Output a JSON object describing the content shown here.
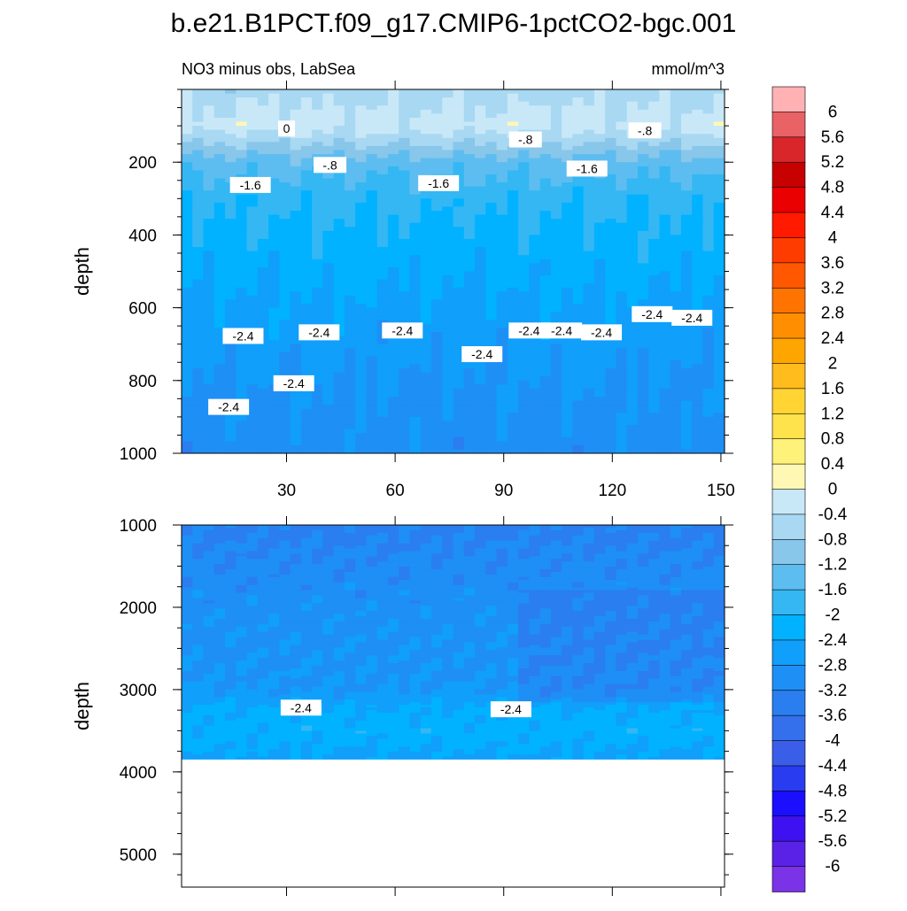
{
  "page": {
    "title": "b.e21.B1PCT.f09_g17.CMIP6-1pctCO2-bgc.001",
    "subtitle_left": "NO3 minus obs, LabSea",
    "subtitle_right": "mmol/m^3"
  },
  "chart_data": [
    {
      "type": "heatmap",
      "panel": "upper",
      "title": "NO3 minus obs, LabSea",
      "units": "mmol/m^3",
      "xlabel": "",
      "ylabel": "depth",
      "xlim": [
        1,
        151
      ],
      "ylim": [
        0,
        1000
      ],
      "y_reversed": true,
      "xticks": [
        30,
        60,
        90,
        120,
        150
      ],
      "yticks": [
        200,
        400,
        600,
        800,
        1000
      ],
      "profile": {
        "depth": [
          0,
          100,
          150,
          200,
          300,
          600,
          800,
          1000
        ],
        "value": [
          -0.6,
          -0.2,
          -0.8,
          -1.4,
          -1.9,
          -2.5,
          -2.8,
          -3.0
        ]
      },
      "contour_labels": [
        {
          "text": "0",
          "x": 30,
          "depth": 110
        },
        {
          "text": "-.8",
          "x": 42,
          "depth": 210
        },
        {
          "text": "-.8",
          "x": 96,
          "depth": 140
        },
        {
          "text": "-.8",
          "x": 129,
          "depth": 115
        },
        {
          "text": "-1.6",
          "x": 20,
          "depth": 265
        },
        {
          "text": "-1.6",
          "x": 72,
          "depth": 260
        },
        {
          "text": "-1.6",
          "x": 113,
          "depth": 220
        },
        {
          "text": "-2.4",
          "x": 18,
          "depth": 680
        },
        {
          "text": "-2.4",
          "x": 39,
          "depth": 670
        },
        {
          "text": "-2.4",
          "x": 62,
          "depth": 665
        },
        {
          "text": "-2.4",
          "x": 84,
          "depth": 730
        },
        {
          "text": "-2.4",
          "x": 97,
          "depth": 665
        },
        {
          "text": "-2.4",
          "x": 106,
          "depth": 665
        },
        {
          "text": "-2.4",
          "x": 117,
          "depth": 670
        },
        {
          "text": "-2.4",
          "x": 131,
          "depth": 620
        },
        {
          "text": "-2.4",
          "x": 142,
          "depth": 630
        },
        {
          "text": "-2.4",
          "x": 14,
          "depth": 875
        },
        {
          "text": "-2.4",
          "x": 32,
          "depth": 810
        }
      ]
    },
    {
      "type": "heatmap",
      "panel": "lower",
      "xlabel": "",
      "ylabel": "depth",
      "xlim": [
        1,
        151
      ],
      "ylim": [
        1000,
        5400
      ],
      "y_reversed": true,
      "yticks": [
        1000,
        2000,
        3000,
        4000,
        5000
      ],
      "data_bottom_depth": 3850,
      "profile": {
        "depth": [
          1000,
          1800,
          2200,
          3000,
          3200,
          3500,
          3850
        ],
        "value": [
          -3.3,
          -3.0,
          -2.9,
          -2.8,
          -2.4,
          -2.2,
          -2.5
        ]
      },
      "contour_labels": [
        {
          "text": "-2.4",
          "x": 34,
          "depth": 3230
        },
        {
          "text": "-2.4",
          "x": 92,
          "depth": 3250
        }
      ]
    }
  ],
  "colorbar": {
    "labels": [
      "6",
      "5.6",
      "5.2",
      "4.8",
      "4.4",
      "4",
      "3.6",
      "3.2",
      "2.8",
      "2.4",
      "2",
      "1.6",
      "1.2",
      "0.8",
      "0.4",
      "0",
      "-0.4",
      "-0.8",
      "-1.2",
      "-1.6",
      "-2",
      "-2.4",
      "-2.8",
      "-3.2",
      "-3.6",
      "-4",
      "-4.4",
      "-4.8",
      "-5.2",
      "-5.6",
      "-6"
    ],
    "colors": [
      "#ffb1b4",
      "#e96266",
      "#d8262b",
      "#c70000",
      "#ea0000",
      "#ff1a00",
      "#ff3c00",
      "#ff5800",
      "#ff7400",
      "#ff8e00",
      "#ffa500",
      "#ffbc1c",
      "#ffd433",
      "#ffe34c",
      "#fff27a",
      "#fff8b4",
      "#c8e8f8",
      "#a8d8f2",
      "#88c6ea",
      "#5ebdf0",
      "#35b7f3",
      "#00b2ff",
      "#109ffa",
      "#1e8ff5",
      "#2a7ef0",
      "#3470ec",
      "#3a5ee8",
      "#2a3cf0",
      "#1a10ff",
      "#3e12f0",
      "#5a22e6",
      "#7a33e6"
    ]
  }
}
